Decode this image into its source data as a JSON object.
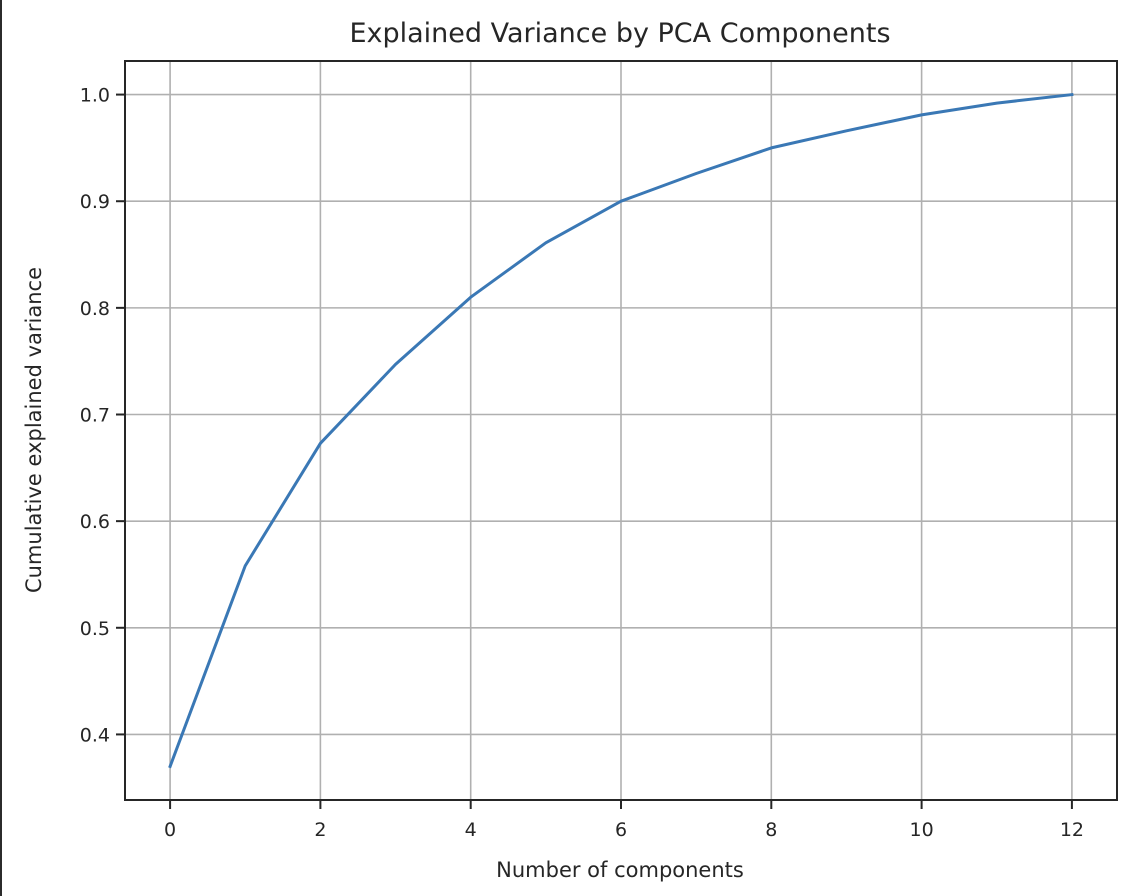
{
  "chart_data": {
    "type": "line",
    "title": "Explained Variance by PCA Components",
    "xlabel": "Number of components",
    "ylabel": "Cumulative explained variance",
    "x": [
      0,
      1,
      2,
      3,
      4,
      5,
      6,
      7,
      8,
      9,
      10,
      11,
      12
    ],
    "series": [
      {
        "name": "Cumulative explained variance",
        "values": [
          0.37,
          0.558,
          0.673,
          0.747,
          0.81,
          0.861,
          0.9,
          0.926,
          0.95,
          0.966,
          0.981,
          0.992,
          1.0
        ],
        "color": "#3a78b5"
      }
    ],
    "xticks": [
      0,
      2,
      4,
      6,
      8,
      10,
      12
    ],
    "yticks": [
      0.4,
      0.5,
      0.6,
      0.7,
      0.8,
      0.9,
      1.0
    ],
    "xtick_labels": [
      "0",
      "2",
      "4",
      "6",
      "8",
      "10",
      "12"
    ],
    "ytick_labels": [
      "0.4",
      "0.5",
      "0.6",
      "0.7",
      "0.8",
      "0.9",
      "1.0"
    ],
    "xlim": [
      -0.6,
      12.6
    ],
    "ylim": [
      0.3385,
      1.0315
    ],
    "grid": true,
    "legend": null
  },
  "style": {
    "grid_color": "#b0b0b0",
    "axes_color": "#262626"
  }
}
